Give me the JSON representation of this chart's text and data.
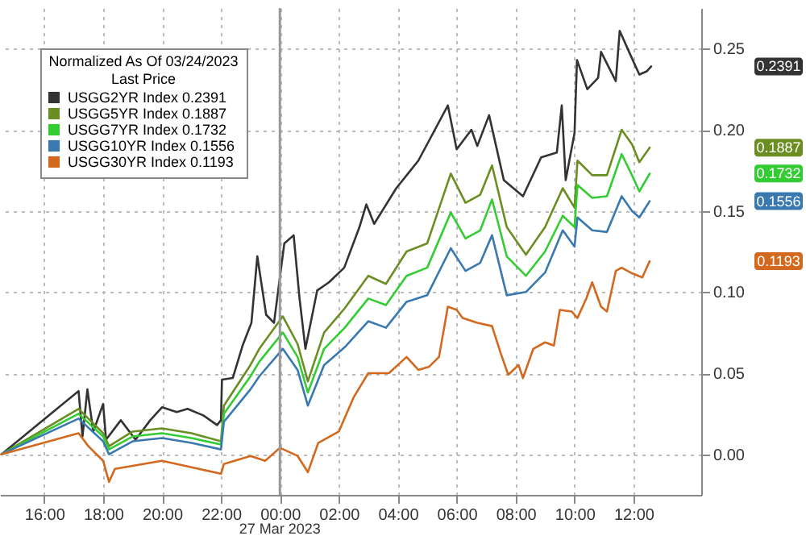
{
  "chart_data": {
    "type": "line",
    "legend_title": "Normalized As Of 03/24/2023\nLast Price",
    "xlim": [
      "2023-03-26T14:30",
      "2023-03-27T14:18"
    ],
    "xticks": [
      {
        "value": "2023-03-26T16:00",
        "label": "16:00"
      },
      {
        "value": "2023-03-26T18:00",
        "label": "18:00"
      },
      {
        "value": "2023-03-26T20:00",
        "label": "20:00"
      },
      {
        "value": "2023-03-26T22:00",
        "label": "22:00"
      },
      {
        "value": "2023-03-27T00:00",
        "label": "00:00"
      },
      {
        "value": "2023-03-27T02:00",
        "label": "02:00"
      },
      {
        "value": "2023-03-27T04:00",
        "label": "04:00"
      },
      {
        "value": "2023-03-27T06:00",
        "label": "06:00"
      },
      {
        "value": "2023-03-27T08:00",
        "label": "08:00"
      },
      {
        "value": "2023-03-27T10:00",
        "label": "10:00"
      },
      {
        "value": "2023-03-27T12:00",
        "label": "12:00"
      }
    ],
    "ylim": [
      -0.025,
      0.275
    ],
    "yticks": [
      {
        "value": 0,
        "label": "0.00"
      },
      0.05,
      {
        "value": 0.1,
        "label": "0.10"
      },
      0.15,
      {
        "value": 0.2,
        "label": "0.20"
      },
      0.25
    ],
    "annotations": [
      "0.2391",
      "0.1887",
      "0.1732",
      "0.1556",
      "0.1193"
    ],
    "grid": true,
    "legend": "top left",
    "line_style": "solid",
    "ref_lines": [
      {
        "axis": "x",
        "value": "2023-03-27T00:00",
        "label": "27 Mar 2023"
      }
    ],
    "x": [
      "2023-03-26T14:33",
      "2023-03-26T17:10",
      "2023-03-26T18:00",
      "2023-03-26T18:12",
      "2023-03-26T19:00",
      "2023-03-26T20:00",
      "2023-03-26T21:00",
      "2023-03-26T22:00",
      "2023-03-26T22:06",
      "2023-03-26T23:00",
      "2023-03-26T23:18",
      "2023-03-27T00:06",
      "2023-03-27T00:36",
      "2023-03-27T00:57",
      "2023-03-27T01:30",
      "2023-03-27T02:12",
      "2023-03-27T03:00",
      "2023-03-27T03:36",
      "2023-03-27T04:18",
      "2023-03-27T05:00",
      "2023-03-27T05:48",
      "2023-03-27T06:18",
      "2023-03-27T06:48",
      "2023-03-27T07:12",
      "2023-03-27T07:42",
      "2023-03-27T08:21",
      "2023-03-27T09:00",
      "2023-03-27T09:36",
      "2023-03-27T10:00",
      "2023-03-27T10:06",
      "2023-03-27T10:36",
      "2023-03-27T11:06",
      "2023-03-27T11:36",
      "2023-03-27T11:57",
      "2023-03-27T12:12",
      "2023-03-27T12:33"
    ],
    "series": [
      {
        "name": "USGG2YR Index  0.2391",
        "color": "#333333",
        "x": [
          "2023-03-26T14:33",
          "2023-03-26T17:10",
          "2023-03-26T17:18",
          "2023-03-26T17:28",
          "2023-03-26T17:40",
          "2023-03-26T18:00",
          "2023-03-26T18:06",
          "2023-03-26T18:36",
          "2023-03-26T19:06",
          "2023-03-26T19:36",
          "2023-03-26T20:00",
          "2023-03-26T20:30",
          "2023-03-26T20:52",
          "2023-03-26T21:24",
          "2023-03-26T21:52",
          "2023-03-26T22:00",
          "2023-03-26T22:02",
          "2023-03-26T22:24",
          "2023-03-26T22:44",
          "2023-03-26T23:02",
          "2023-03-26T23:14",
          "2023-03-26T23:32",
          "2023-03-26T23:48",
          "2023-03-27T00:09",
          "2023-03-27T00:28",
          "2023-03-27T00:40",
          "2023-03-27T00:52",
          "2023-03-27T01:16",
          "2023-03-27T01:40",
          "2023-03-27T02:11",
          "2023-03-27T02:42",
          "2023-03-27T02:56",
          "2023-03-27T03:12",
          "2023-03-27T03:57",
          "2023-03-27T04:42",
          "2023-03-27T05:42",
          "2023-03-27T06:00",
          "2023-03-27T06:30",
          "2023-03-27T06:42",
          "2023-03-27T07:06",
          "2023-03-27T07:36",
          "2023-03-27T08:15",
          "2023-03-27T08:52",
          "2023-03-27T09:24",
          "2023-03-27T09:34",
          "2023-03-27T09:42",
          "2023-03-27T10:00",
          "2023-03-27T10:05",
          "2023-03-27T10:26",
          "2023-03-27T10:48",
          "2023-03-27T10:54",
          "2023-03-27T11:24",
          "2023-03-27T11:32",
          "2023-03-27T11:54",
          "2023-03-27T12:12",
          "2023-03-27T12:27",
          "2023-03-27T12:36"
        ],
        "values": [
          0.0,
          0.039,
          0.011,
          0.04,
          0.014,
          0.031,
          0.009,
          0.021,
          0.009,
          0.021,
          0.029,
          0.026,
          0.028,
          0.024,
          0.018,
          0.021,
          0.046,
          0.047,
          0.067,
          0.081,
          0.122,
          0.086,
          0.081,
          0.13,
          0.135,
          0.096,
          0.065,
          0.101,
          0.106,
          0.115,
          0.14,
          0.154,
          0.142,
          0.164,
          0.181,
          0.215,
          0.188,
          0.2,
          0.19,
          0.209,
          0.169,
          0.159,
          0.183,
          0.186,
          0.215,
          0.169,
          0.198,
          0.243,
          0.225,
          0.232,
          0.248,
          0.23,
          0.261,
          0.246,
          0.234,
          0.236,
          0.239
        ]
      },
      {
        "name": "USGG5YR Index  0.1887",
        "color": "#6b8e23",
        "values": [
          0.0,
          0.028,
          0.013,
          0.005,
          0.014,
          0.016,
          0.013,
          0.008,
          0.03,
          0.055,
          0.065,
          0.085,
          0.068,
          0.045,
          0.075,
          0.09,
          0.11,
          0.105,
          0.125,
          0.13,
          0.173,
          0.155,
          0.16,
          0.178,
          0.14,
          0.123,
          0.14,
          0.164,
          0.152,
          0.181,
          0.172,
          0.172,
          0.2,
          0.191,
          0.18,
          0.189
        ]
      },
      {
        "name": "USGG7YR Index  0.1732",
        "color": "#33cc33",
        "values": [
          0.0,
          0.025,
          0.011,
          0.003,
          0.011,
          0.013,
          0.01,
          0.006,
          0.025,
          0.048,
          0.057,
          0.075,
          0.06,
          0.038,
          0.065,
          0.078,
          0.096,
          0.092,
          0.11,
          0.115,
          0.149,
          0.133,
          0.138,
          0.157,
          0.122,
          0.11,
          0.125,
          0.147,
          0.14,
          0.166,
          0.158,
          0.159,
          0.185,
          0.172,
          0.162,
          0.173
        ]
      },
      {
        "name": "USGG10YR Index  0.1556",
        "color": "#3a78b0",
        "values": [
          0.0,
          0.022,
          0.008,
          0.0,
          0.008,
          0.01,
          0.007,
          0.003,
          0.02,
          0.04,
          0.048,
          0.065,
          0.052,
          0.03,
          0.055,
          0.066,
          0.082,
          0.078,
          0.094,
          0.098,
          0.127,
          0.113,
          0.118,
          0.135,
          0.098,
          0.1,
          0.112,
          0.138,
          0.128,
          0.146,
          0.138,
          0.137,
          0.159,
          0.15,
          0.146,
          0.156
        ]
      },
      {
        "name": "USGG30YR Index  0.1193",
        "color": "#d2691e",
        "x": [
          "2023-03-26T14:33",
          "2023-03-26T17:10",
          "2023-03-26T17:30",
          "2023-03-26T18:00",
          "2023-03-26T18:12",
          "2023-03-26T18:24",
          "2023-03-26T20:00",
          "2023-03-26T21:00",
          "2023-03-26T22:00",
          "2023-03-26T22:06",
          "2023-03-26T23:00",
          "2023-03-26T23:30",
          "2023-03-27T00:00",
          "2023-03-27T00:36",
          "2023-03-27T00:57",
          "2023-03-27T01:18",
          "2023-03-27T02:00",
          "2023-03-27T02:30",
          "2023-03-27T03:00",
          "2023-03-27T03:42",
          "2023-03-27T04:18",
          "2023-03-27T04:42",
          "2023-03-27T05:04",
          "2023-03-27T05:24",
          "2023-03-27T05:42",
          "2023-03-27T06:00",
          "2023-03-27T06:12",
          "2023-03-27T06:42",
          "2023-03-27T07:12",
          "2023-03-27T07:30",
          "2023-03-27T07:45",
          "2023-03-27T08:06",
          "2023-03-27T08:15",
          "2023-03-27T08:36",
          "2023-03-27T09:00",
          "2023-03-27T09:18",
          "2023-03-27T09:30",
          "2023-03-27T09:54",
          "2023-03-27T10:06",
          "2023-03-27T10:24",
          "2023-03-27T10:36",
          "2023-03-27T10:54",
          "2023-03-27T11:06",
          "2023-03-27T11:24",
          "2023-03-27T11:36",
          "2023-03-27T11:54",
          "2023-03-27T12:18",
          "2023-03-27T12:33"
        ],
        "values": [
          0.0,
          0.013,
          0.005,
          -0.004,
          -0.017,
          -0.009,
          -0.004,
          -0.008,
          -0.012,
          -0.006,
          -0.001,
          -0.004,
          0.004,
          -0.001,
          -0.011,
          0.007,
          0.014,
          0.035,
          0.05,
          0.05,
          0.06,
          0.052,
          0.054,
          0.06,
          0.091,
          0.089,
          0.084,
          0.081,
          0.079,
          0.062,
          0.049,
          0.055,
          0.047,
          0.065,
          0.069,
          0.067,
          0.089,
          0.088,
          0.084,
          0.096,
          0.106,
          0.091,
          0.088,
          0.113,
          0.115,
          0.112,
          0.109,
          0.119
        ]
      }
    ]
  }
}
